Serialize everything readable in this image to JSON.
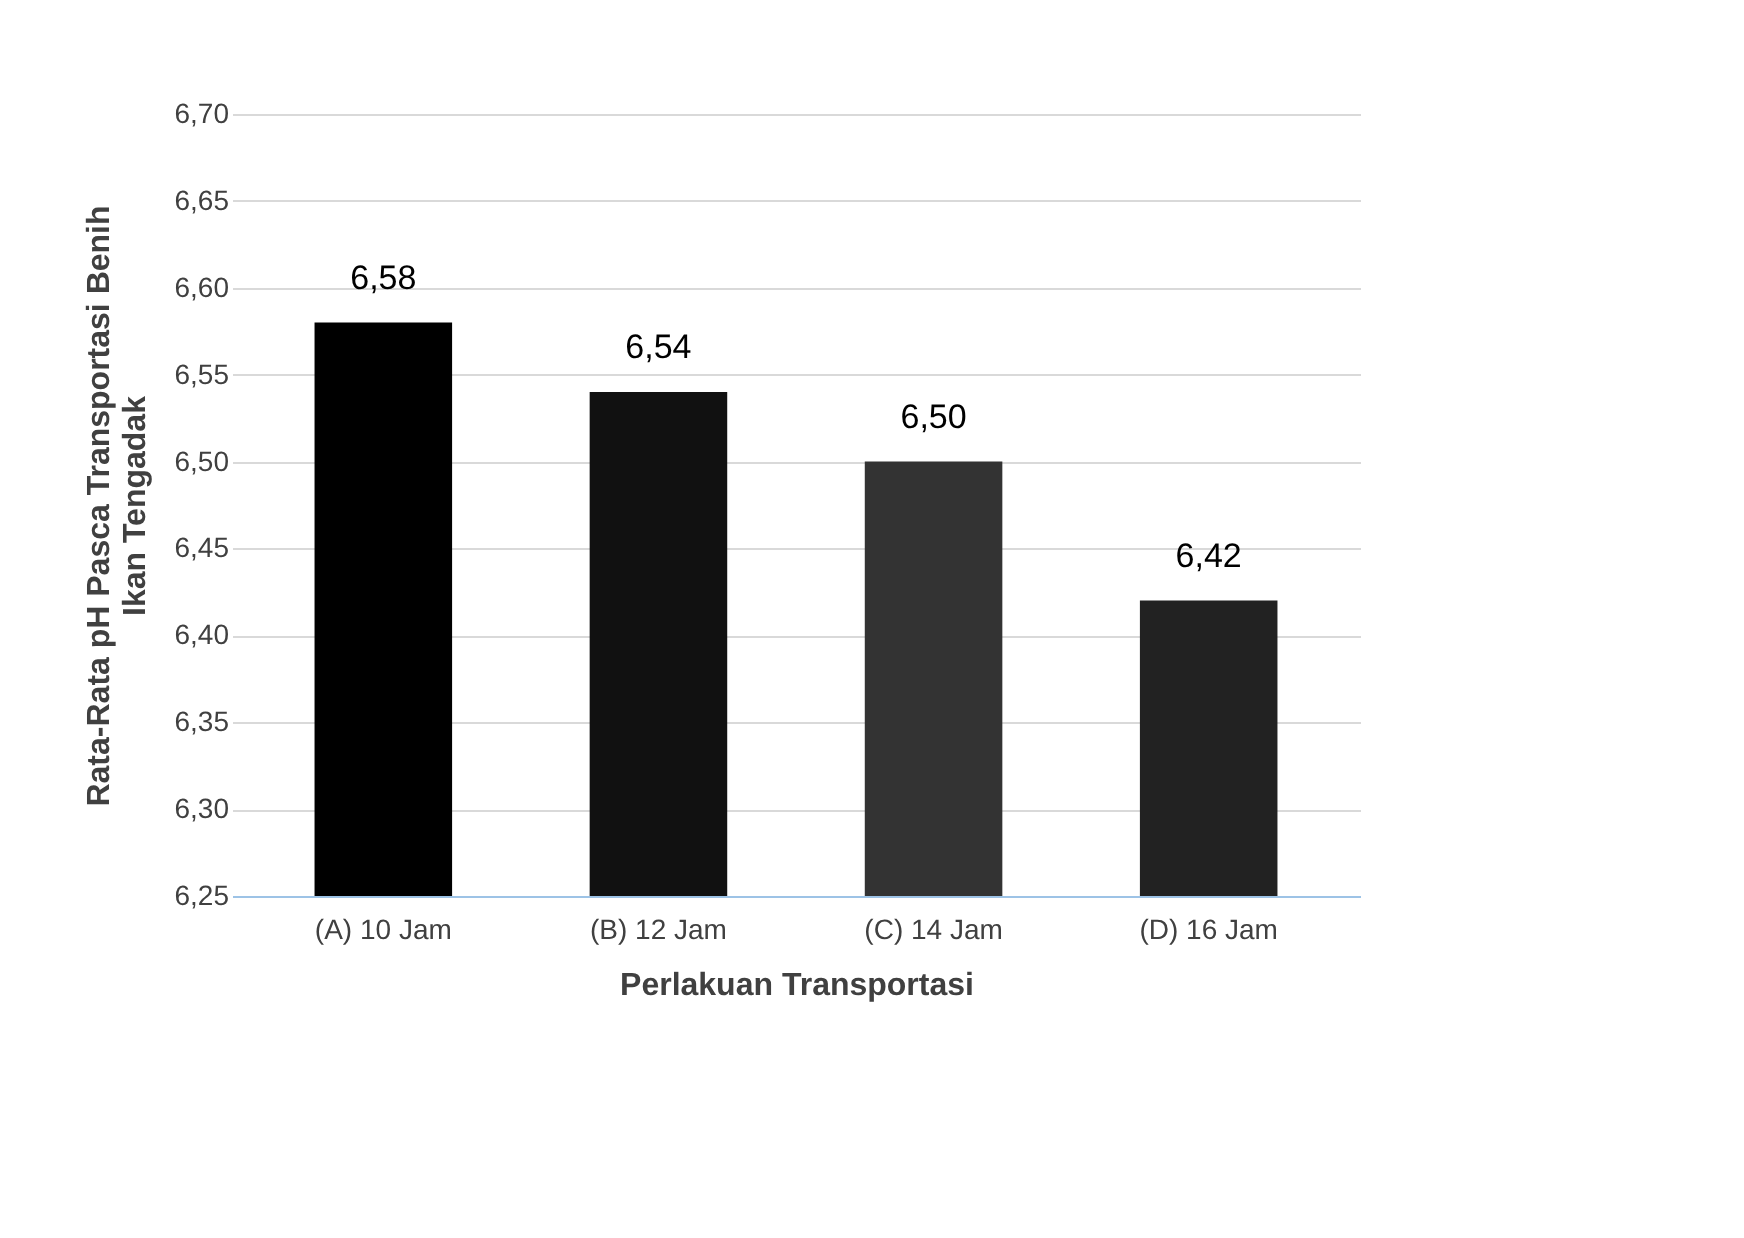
{
  "chart_data": {
    "type": "bar",
    "categories": [
      "(A)  10 Jam",
      "(B) 12 Jam",
      "(C)  14 Jam",
      "(D) 16 Jam"
    ],
    "values": [
      6.58,
      6.54,
      6.5,
      6.42
    ],
    "value_labels": [
      "6,58",
      "6,54",
      "6,50",
      "6,42"
    ],
    "colors": [
      "#000000",
      "#111111",
      "#333333",
      "#222222"
    ],
    "xlabel": "Perlakuan Transportasi",
    "ylabel": "Rata-Rata  pH Pasca Transportasi  Benih\nIkan Tengadak",
    "ylim": [
      6.25,
      6.7
    ],
    "yticks": [
      {
        "value": 6.25,
        "label": "6,25"
      },
      {
        "value": 6.3,
        "label": "6,30"
      },
      {
        "value": 6.35,
        "label": "6,35"
      },
      {
        "value": 6.4,
        "label": "6,40"
      },
      {
        "value": 6.45,
        "label": "6,45"
      },
      {
        "value": 6.5,
        "label": "6,50"
      },
      {
        "value": 6.55,
        "label": "6,55"
      },
      {
        "value": 6.6,
        "label": "6,60"
      },
      {
        "value": 6.65,
        "label": "6,65"
      },
      {
        "value": 6.7,
        "label": "6,70"
      }
    ],
    "grid": "y"
  }
}
